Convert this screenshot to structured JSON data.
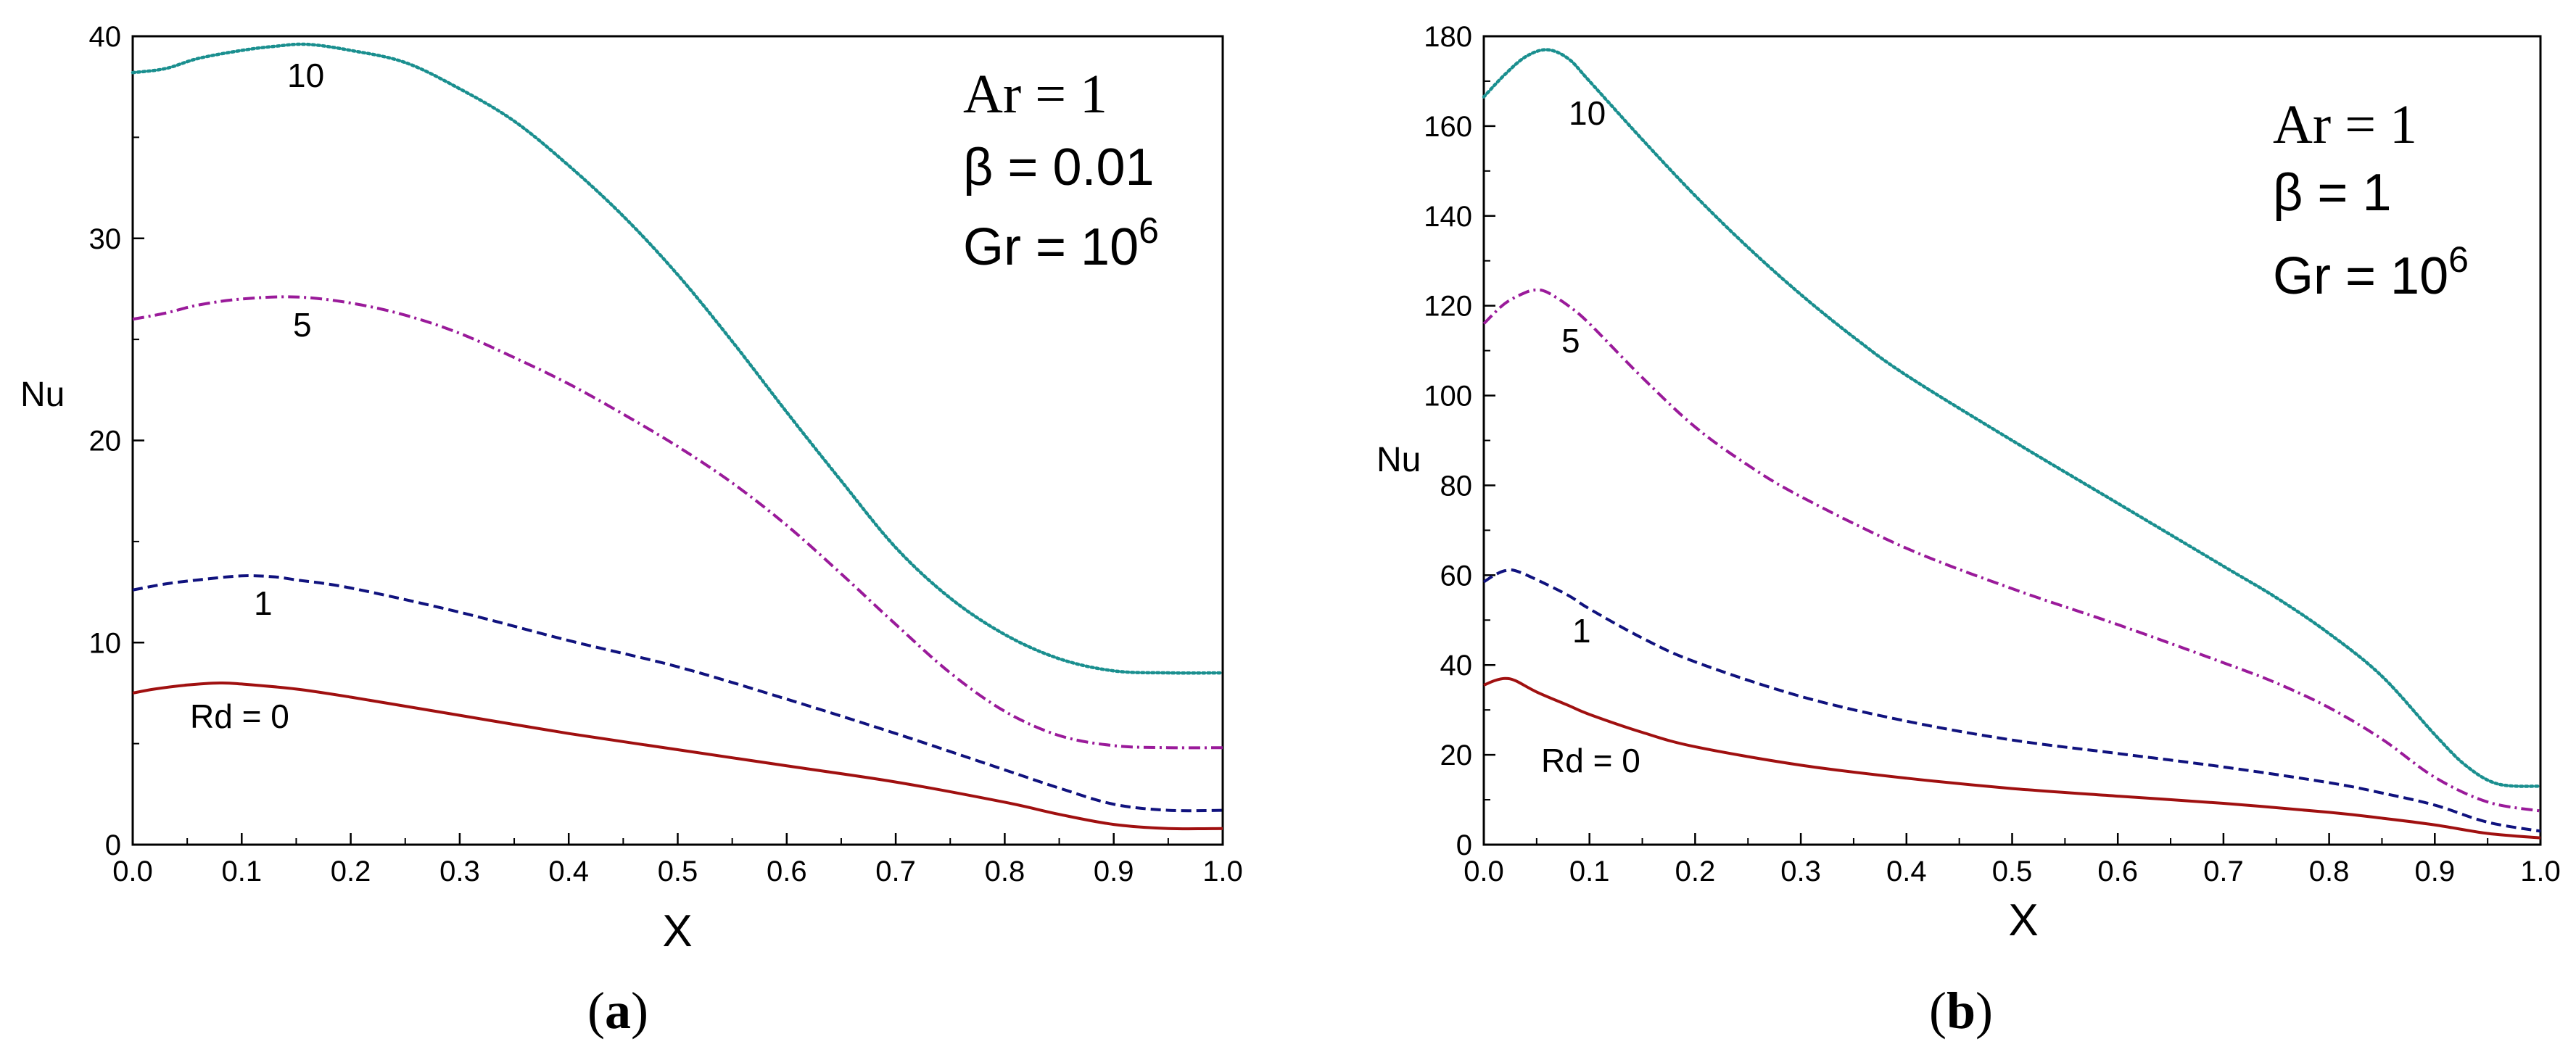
{
  "chart_data": [
    {
      "type": "line",
      "panel_label": "a",
      "xlabel": "X",
      "ylabel": "Nu",
      "xlim": [
        0,
        1
      ],
      "ylim": [
        0,
        40
      ],
      "xticks": [
        "0.0",
        "0.1",
        "0.2",
        "0.3",
        "0.4",
        "0.5",
        "0.6",
        "0.7",
        "0.8",
        "0.9",
        "1.0"
      ],
      "yticks": [
        "0",
        "10",
        "20",
        "30",
        "40"
      ],
      "annotation": {
        "ar": "Ar = 1",
        "beta": "β = 0.01",
        "gr_base": "Gr = 10",
        "gr_exp": "6"
      },
      "series": [
        {
          "name": "Rd = 0",
          "label": "Rd = 0",
          "color": "#a01010",
          "style": "solid",
          "x": [
            0,
            0.02,
            0.05,
            0.08,
            0.1,
            0.15,
            0.2,
            0.3,
            0.4,
            0.5,
            0.6,
            0.7,
            0.8,
            0.85,
            0.9,
            0.95,
            1.0
          ],
          "y": [
            7.5,
            7.7,
            7.9,
            8.0,
            7.95,
            7.7,
            7.3,
            6.4,
            5.5,
            4.7,
            3.9,
            3.1,
            2.1,
            1.5,
            1.0,
            0.8,
            0.8
          ]
        },
        {
          "name": "1",
          "label": "1",
          "color": "#10127e",
          "style": "dashed",
          "x": [
            0,
            0.03,
            0.06,
            0.1,
            0.13,
            0.15,
            0.2,
            0.3,
            0.4,
            0.5,
            0.6,
            0.7,
            0.8,
            0.85,
            0.9,
            0.95,
            1.0
          ],
          "y": [
            12.6,
            12.9,
            13.1,
            13.3,
            13.25,
            13.1,
            12.7,
            11.5,
            10.1,
            8.8,
            7.2,
            5.5,
            3.7,
            2.8,
            2.0,
            1.7,
            1.7
          ]
        },
        {
          "name": "5",
          "label": "5",
          "color": "#9a1a9a",
          "style": "dashdot",
          "x": [
            0,
            0.03,
            0.06,
            0.1,
            0.15,
            0.2,
            0.25,
            0.3,
            0.35,
            0.4,
            0.45,
            0.5,
            0.55,
            0.6,
            0.65,
            0.7,
            0.75,
            0.8,
            0.85,
            0.9,
            0.95,
            1.0
          ],
          "y": [
            26.0,
            26.3,
            26.7,
            27.0,
            27.1,
            26.8,
            26.2,
            25.3,
            24.1,
            22.8,
            21.3,
            19.7,
            17.9,
            15.8,
            13.4,
            10.9,
            8.5,
            6.6,
            5.4,
            4.9,
            4.8,
            4.8
          ]
        },
        {
          "name": "10",
          "label": "10",
          "color": "#1a8f8f",
          "style": "dotted",
          "x": [
            0,
            0.03,
            0.06,
            0.1,
            0.13,
            0.16,
            0.2,
            0.25,
            0.3,
            0.35,
            0.4,
            0.45,
            0.5,
            0.55,
            0.6,
            0.65,
            0.7,
            0.75,
            0.8,
            0.85,
            0.9,
            0.95,
            1.0
          ],
          "y": [
            38.2,
            38.4,
            38.9,
            39.3,
            39.5,
            39.6,
            39.3,
            38.7,
            37.4,
            35.8,
            33.6,
            31.1,
            28.2,
            24.9,
            21.4,
            18.0,
            14.7,
            12.2,
            10.4,
            9.2,
            8.6,
            8.5,
            8.5
          ]
        }
      ]
    },
    {
      "type": "line",
      "panel_label": "b",
      "xlabel": "X",
      "ylabel": "Nu",
      "xlim": [
        0,
        1
      ],
      "ylim": [
        0,
        180
      ],
      "xticks": [
        "0.0",
        "0.1",
        "0.2",
        "0.3",
        "0.4",
        "0.5",
        "0.6",
        "0.7",
        "0.8",
        "0.9",
        "1.0"
      ],
      "yticks": [
        "0",
        "20",
        "40",
        "60",
        "80",
        "100",
        "120",
        "140",
        "160",
        "180"
      ],
      "annotation": {
        "ar": "Ar = 1",
        "beta": "β = 1",
        "gr_base": "Gr = 10",
        "gr_exp": "6"
      },
      "series": [
        {
          "name": "Rd = 0",
          "label": "Rd = 0",
          "color": "#a01010",
          "style": "solid",
          "x": [
            0,
            0.01,
            0.02,
            0.03,
            0.05,
            0.08,
            0.1,
            0.15,
            0.2,
            0.3,
            0.4,
            0.5,
            0.6,
            0.7,
            0.8,
            0.85,
            0.9,
            0.95,
            1.0
          ],
          "y": [
            35.5,
            36.5,
            37.0,
            36.5,
            34.0,
            31.0,
            29.0,
            25.0,
            21.8,
            17.7,
            14.8,
            12.5,
            10.8,
            9.2,
            7.2,
            5.9,
            4.4,
            2.5,
            1.5
          ]
        },
        {
          "name": "1",
          "label": "1",
          "color": "#10127e",
          "style": "dashed",
          "x": [
            0,
            0.01,
            0.02,
            0.03,
            0.05,
            0.08,
            0.1,
            0.15,
            0.2,
            0.3,
            0.4,
            0.5,
            0.6,
            0.7,
            0.8,
            0.85,
            0.9,
            0.95,
            1.0
          ],
          "y": [
            58.5,
            60.0,
            61.0,
            61.0,
            59.0,
            55.5,
            52.5,
            46.0,
            40.7,
            33.0,
            27.5,
            23.3,
            20.3,
            17.3,
            13.8,
            11.5,
            8.8,
            5.0,
            3.0
          ]
        },
        {
          "name": "5",
          "label": "5",
          "color": "#9a1a9a",
          "style": "dashdot",
          "x": [
            0,
            0.02,
            0.04,
            0.05,
            0.06,
            0.08,
            0.1,
            0.15,
            0.2,
            0.25,
            0.3,
            0.4,
            0.5,
            0.6,
            0.7,
            0.75,
            0.8,
            0.85,
            0.9,
            0.95,
            1.0
          ],
          "y": [
            116.0,
            120.5,
            123.0,
            123.5,
            123.0,
            120.0,
            116.0,
            104.0,
            93.0,
            84.5,
            77.5,
            66.0,
            57.0,
            49.0,
            40.5,
            36.0,
            30.5,
            23.5,
            15.0,
            9.5,
            7.5
          ]
        },
        {
          "name": "10",
          "label": "10",
          "color": "#1a8f8f",
          "style": "dotted",
          "x": [
            0,
            0.02,
            0.04,
            0.06,
            0.08,
            0.1,
            0.15,
            0.2,
            0.25,
            0.3,
            0.35,
            0.4,
            0.5,
            0.6,
            0.7,
            0.75,
            0.8,
            0.85,
            0.9,
            0.93,
            0.96,
            1.0
          ],
          "y": [
            166.5,
            171.5,
            175.5,
            177.0,
            175.0,
            170.0,
            157.0,
            144.5,
            133.0,
            122.5,
            113.0,
            104.5,
            90.0,
            76.0,
            62.0,
            55.0,
            47.0,
            37.5,
            24.5,
            17.5,
            13.5,
            13.0
          ]
        }
      ]
    }
  ]
}
